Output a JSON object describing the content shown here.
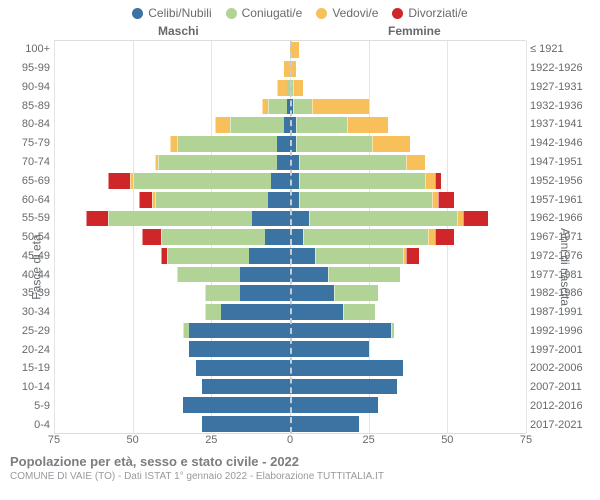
{
  "legend": [
    {
      "label": "Celibi/Nubili",
      "color": "#3b73a3"
    },
    {
      "label": "Coniugati/e",
      "color": "#b2d396"
    },
    {
      "label": "Vedovi/e",
      "color": "#f7c05b"
    },
    {
      "label": "Divorziati/e",
      "color": "#cf2629"
    }
  ],
  "headers": {
    "male": "Maschi",
    "female": "Femmine"
  },
  "y_left_title": "Fasce di età",
  "y_right_title": "Anni di nascita",
  "x_axis": {
    "min": -75,
    "max": 75,
    "ticks": [
      75,
      50,
      25,
      0,
      25,
      50,
      75
    ],
    "tick_positions_pct": [
      0,
      16.67,
      33.33,
      50,
      66.67,
      83.33,
      100
    ]
  },
  "grid_positions_pct": [
    0,
    16.67,
    33.33,
    50,
    66.67,
    83.33,
    100
  ],
  "colors": {
    "single": "#3b73a3",
    "married": "#b2d396",
    "widowed": "#f7c05b",
    "divorced": "#cf2629",
    "grid": "#e4e4e4",
    "center_dash": "#c7ccd1",
    "bg": "#ffffff",
    "text": "#666a6d"
  },
  "bar_height_pct": 84,
  "rows": [
    {
      "age": "100+",
      "birth": "≤ 1921",
      "m": {
        "s": 0,
        "c": 0,
        "v": 0,
        "d": 0
      },
      "f": {
        "s": 0,
        "c": 0,
        "v": 3,
        "d": 0
      }
    },
    {
      "age": "95-99",
      "birth": "1922-1926",
      "m": {
        "s": 0,
        "c": 0,
        "v": 2,
        "d": 0
      },
      "f": {
        "s": 0,
        "c": 0,
        "v": 2,
        "d": 0
      }
    },
    {
      "age": "90-94",
      "birth": "1927-1931",
      "m": {
        "s": 0,
        "c": 1,
        "v": 3,
        "d": 0
      },
      "f": {
        "s": 0,
        "c": 1,
        "v": 3,
        "d": 0
      }
    },
    {
      "age": "85-89",
      "birth": "1932-1936",
      "m": {
        "s": 1,
        "c": 6,
        "v": 2,
        "d": 0
      },
      "f": {
        "s": 1,
        "c": 6,
        "v": 18,
        "d": 0
      }
    },
    {
      "age": "80-84",
      "birth": "1937-1941",
      "m": {
        "s": 2,
        "c": 17,
        "v": 5,
        "d": 0
      },
      "f": {
        "s": 2,
        "c": 16,
        "v": 13,
        "d": 0
      }
    },
    {
      "age": "75-79",
      "birth": "1942-1946",
      "m": {
        "s": 4,
        "c": 32,
        "v": 2,
        "d": 0
      },
      "f": {
        "s": 2,
        "c": 24,
        "v": 12,
        "d": 0
      }
    },
    {
      "age": "70-74",
      "birth": "1947-1951",
      "m": {
        "s": 4,
        "c": 38,
        "v": 1,
        "d": 0
      },
      "f": {
        "s": 3,
        "c": 34,
        "v": 6,
        "d": 0
      }
    },
    {
      "age": "65-69",
      "birth": "1952-1956",
      "m": {
        "s": 6,
        "c": 44,
        "v": 1,
        "d": 7
      },
      "f": {
        "s": 3,
        "c": 40,
        "v": 3,
        "d": 2
      }
    },
    {
      "age": "60-64",
      "birth": "1957-1961",
      "m": {
        "s": 7,
        "c": 36,
        "v": 1,
        "d": 4
      },
      "f": {
        "s": 3,
        "c": 42,
        "v": 2,
        "d": 5
      }
    },
    {
      "age": "55-59",
      "birth": "1962-1966",
      "m": {
        "s": 12,
        "c": 46,
        "v": 0,
        "d": 7
      },
      "f": {
        "s": 6,
        "c": 47,
        "v": 2,
        "d": 8
      }
    },
    {
      "age": "50-54",
      "birth": "1967-1971",
      "m": {
        "s": 8,
        "c": 33,
        "v": 0,
        "d": 6
      },
      "f": {
        "s": 4,
        "c": 40,
        "v": 2,
        "d": 6
      }
    },
    {
      "age": "45-49",
      "birth": "1972-1976",
      "m": {
        "s": 13,
        "c": 26,
        "v": 0,
        "d": 2
      },
      "f": {
        "s": 8,
        "c": 28,
        "v": 1,
        "d": 4
      }
    },
    {
      "age": "40-44",
      "birth": "1977-1981",
      "m": {
        "s": 16,
        "c": 20,
        "v": 0,
        "d": 0
      },
      "f": {
        "s": 12,
        "c": 23,
        "v": 0,
        "d": 0
      }
    },
    {
      "age": "35-39",
      "birth": "1982-1986",
      "m": {
        "s": 16,
        "c": 11,
        "v": 0,
        "d": 0
      },
      "f": {
        "s": 14,
        "c": 14,
        "v": 0,
        "d": 0
      }
    },
    {
      "age": "30-34",
      "birth": "1987-1991",
      "m": {
        "s": 22,
        "c": 5,
        "v": 0,
        "d": 0
      },
      "f": {
        "s": 17,
        "c": 10,
        "v": 0,
        "d": 0
      }
    },
    {
      "age": "25-29",
      "birth": "1992-1996",
      "m": {
        "s": 32,
        "c": 2,
        "v": 0,
        "d": 0
      },
      "f": {
        "s": 32,
        "c": 1,
        "v": 0,
        "d": 0
      }
    },
    {
      "age": "20-24",
      "birth": "1997-2001",
      "m": {
        "s": 32,
        "c": 0,
        "v": 0,
        "d": 0
      },
      "f": {
        "s": 25,
        "c": 0,
        "v": 0,
        "d": 0
      }
    },
    {
      "age": "15-19",
      "birth": "2002-2006",
      "m": {
        "s": 30,
        "c": 0,
        "v": 0,
        "d": 0
      },
      "f": {
        "s": 36,
        "c": 0,
        "v": 0,
        "d": 0
      }
    },
    {
      "age": "10-14",
      "birth": "2007-2011",
      "m": {
        "s": 28,
        "c": 0,
        "v": 0,
        "d": 0
      },
      "f": {
        "s": 34,
        "c": 0,
        "v": 0,
        "d": 0
      }
    },
    {
      "age": "5-9",
      "birth": "2012-2016",
      "m": {
        "s": 34,
        "c": 0,
        "v": 0,
        "d": 0
      },
      "f": {
        "s": 28,
        "c": 0,
        "v": 0,
        "d": 0
      }
    },
    {
      "age": "0-4",
      "birth": "2017-2021",
      "m": {
        "s": 28,
        "c": 0,
        "v": 0,
        "d": 0
      },
      "f": {
        "s": 22,
        "c": 0,
        "v": 0,
        "d": 0
      }
    }
  ],
  "axis_scale_max": 75,
  "title": "Popolazione per età, sesso e stato civile - 2022",
  "subtitle": "COMUNE DI VAIE (TO) - Dati ISTAT 1° gennaio 2022 - Elaborazione TUTTITALIA.IT"
}
